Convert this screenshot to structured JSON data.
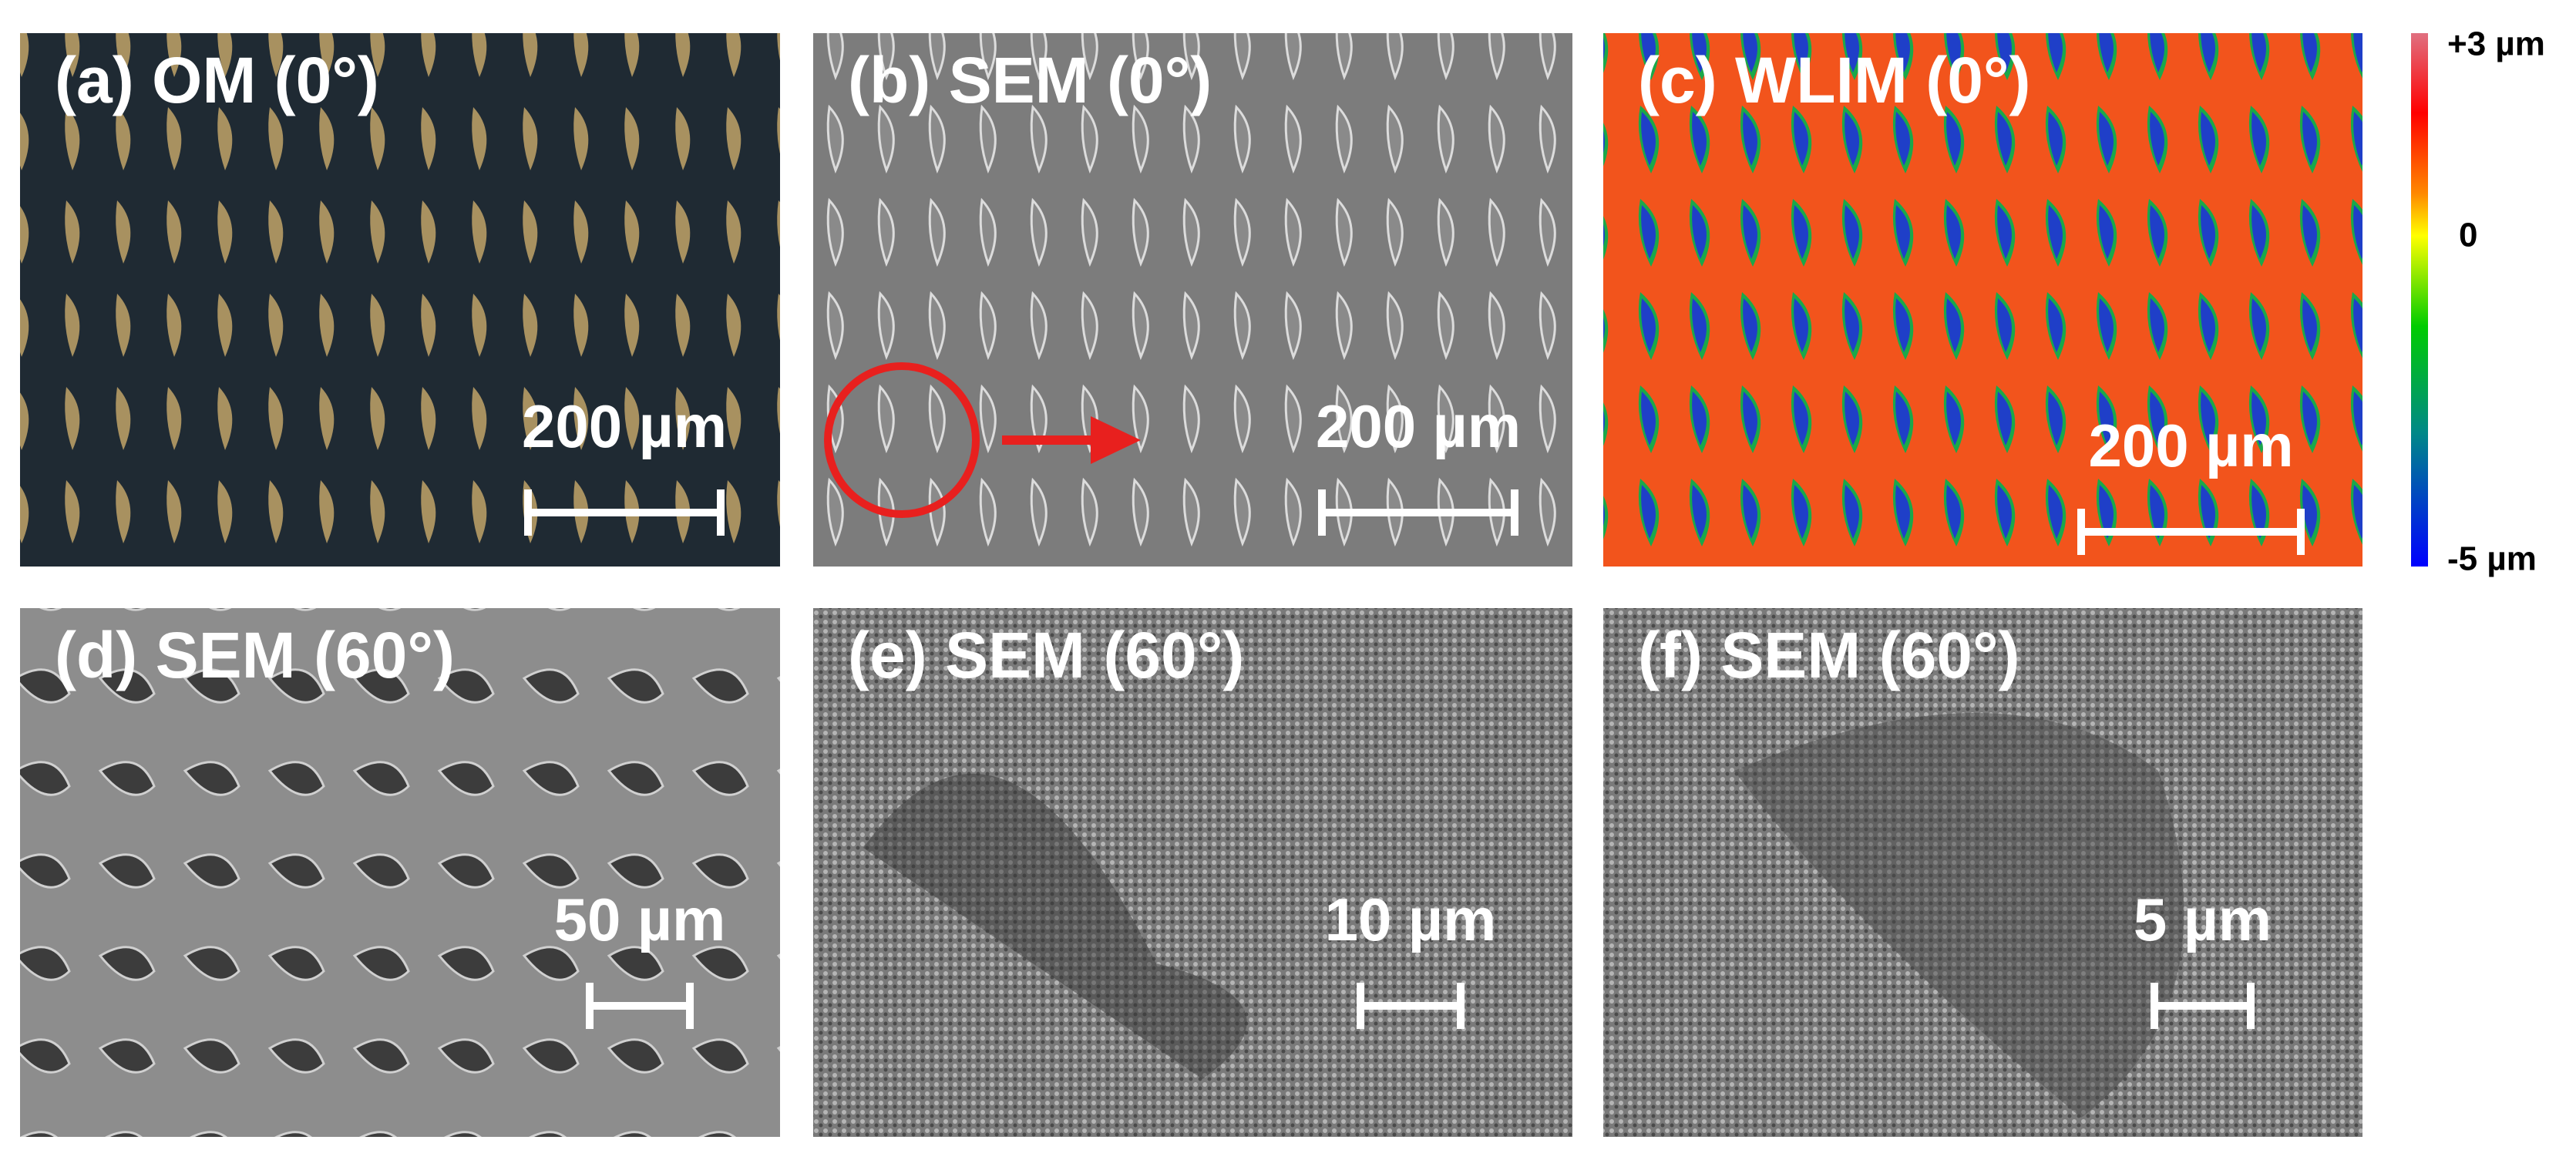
{
  "panels": [
    {
      "label": "(a) OM (0°)",
      "scale_bar": "200 µm"
    },
    {
      "label": "(b)  SEM (0°)",
      "scale_bar": "200 µm"
    },
    {
      "label": "(c) WLIM (0°)",
      "scale_bar": "200 µm"
    },
    {
      "label": "(d) SEM (60°)",
      "scale_bar": "50 µm"
    },
    {
      "label": "(e) SEM (60°)",
      "scale_bar": "10 µm"
    },
    {
      "label": "(f) SEM (60°)",
      "scale_bar": "5 µm"
    }
  ],
  "colorbar": {
    "ticks": [
      "+3 µm",
      "0",
      "-5 µm"
    ]
  }
}
